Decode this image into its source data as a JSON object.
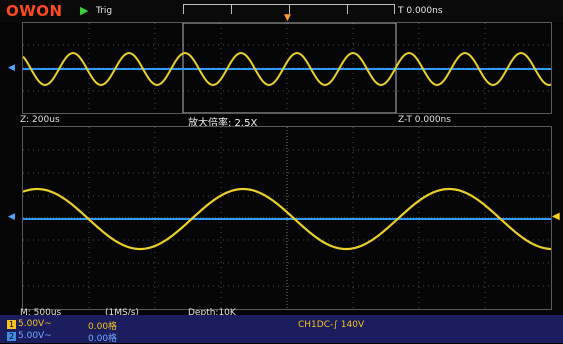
{
  "header": {
    "brand": "OWON",
    "run_icon": "play-triangle-icon",
    "trigger_label": "Trig",
    "time_position": "T 0.000ns"
  },
  "zoom_window": {
    "timebase": "Z: 200us",
    "magnification": "放大倍率: 2.5X",
    "zoom_offset": "Z-T 0.000ns"
  },
  "main_window": {
    "timebase": "M: 500us",
    "sample_rate": "(1MS/s)",
    "depth": "Depth:10K"
  },
  "channels": [
    {
      "id": "1",
      "scale": "5.00V~",
      "offset": "0.00格",
      "color": "#f2c21a"
    },
    {
      "id": "2",
      "scale": "5.00V~",
      "offset": "0.00格",
      "color": "#3f8de0"
    }
  ],
  "trigger_status": "CH1DC-∫ 140V",
  "ch_marker": "1",
  "colors": {
    "ch1_wave": "#e8cf2a",
    "ch2_wave": "#2e9bff",
    "trigger_marker": "#ff9a2a",
    "status_bar": "#1b1d5e"
  }
}
